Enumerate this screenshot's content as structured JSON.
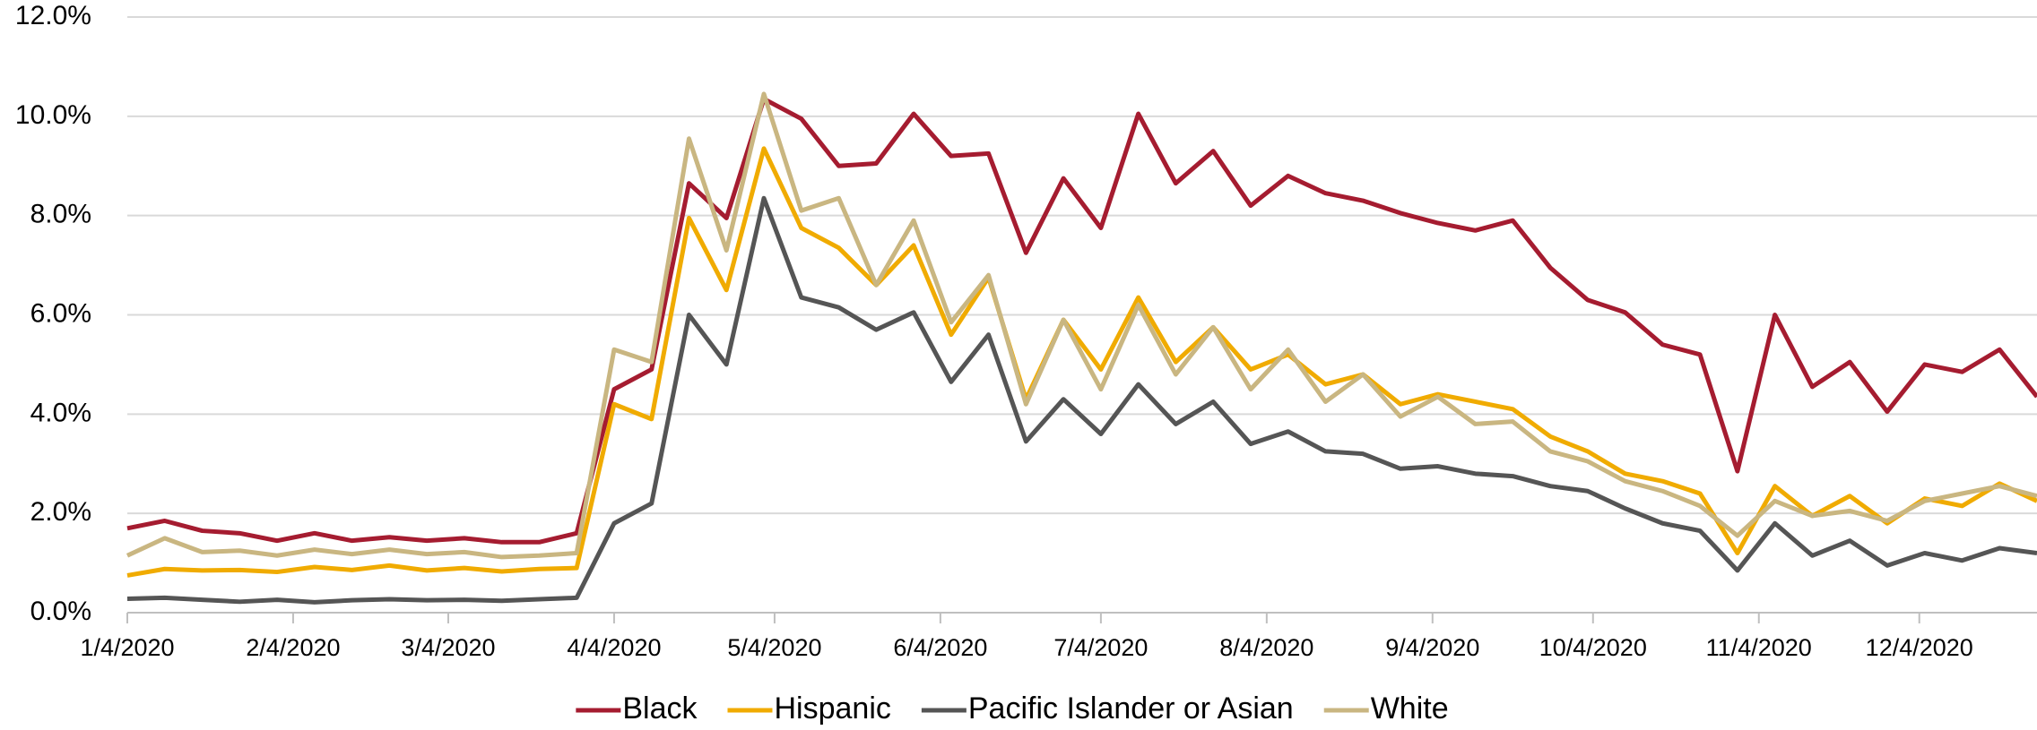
{
  "chart_data": {
    "type": "line",
    "x": [
      "1/4/2020",
      "1/11/2020",
      "1/18/2020",
      "1/25/2020",
      "2/1/2020",
      "2/8/2020",
      "2/15/2020",
      "2/22/2020",
      "2/29/2020",
      "3/7/2020",
      "3/14/2020",
      "3/21/2020",
      "3/28/2020",
      "4/4/2020",
      "4/11/2020",
      "4/18/2020",
      "4/25/2020",
      "5/2/2020",
      "5/9/2020",
      "5/16/2020",
      "5/23/2020",
      "5/30/2020",
      "6/6/2020",
      "6/13/2020",
      "6/20/2020",
      "6/27/2020",
      "7/4/2020",
      "7/11/2020",
      "7/18/2020",
      "7/25/2020",
      "8/1/2020",
      "8/8/2020",
      "8/15/2020",
      "8/22/2020",
      "8/29/2020",
      "9/5/2020",
      "9/12/2020",
      "9/19/2020",
      "9/26/2020",
      "10/3/2020",
      "10/10/2020",
      "10/17/2020",
      "10/24/2020",
      "10/31/2020",
      "11/7/2020",
      "11/14/2020",
      "11/21/2020",
      "11/28/2020",
      "12/5/2020",
      "12/12/2020",
      "12/19/2020",
      "12/26/2020"
    ],
    "series": [
      {
        "name": "Black",
        "color": "#a51c30",
        "values": [
          1.7,
          1.85,
          1.65,
          1.6,
          1.45,
          1.6,
          1.45,
          1.52,
          1.45,
          1.5,
          1.42,
          1.42,
          1.6,
          4.5,
          4.9,
          8.65,
          7.95,
          10.35,
          9.95,
          9.0,
          9.05,
          10.05,
          9.2,
          9.25,
          7.25,
          8.75,
          7.75,
          10.05,
          8.65,
          9.3,
          8.2,
          8.8,
          8.45,
          8.3,
          8.05,
          7.85,
          7.7,
          7.9,
          6.95,
          6.3,
          6.05,
          5.4,
          5.2,
          2.85,
          6.0,
          4.55,
          5.05,
          4.05,
          5.0,
          4.85,
          5.3,
          4.35
        ]
      },
      {
        "name": "Hispanic",
        "color": "#f0ab00",
        "values": [
          0.75,
          0.88,
          0.85,
          0.86,
          0.82,
          0.92,
          0.86,
          0.95,
          0.85,
          0.9,
          0.83,
          0.88,
          0.9,
          4.2,
          3.9,
          7.95,
          6.5,
          9.35,
          7.75,
          7.35,
          6.6,
          7.4,
          5.6,
          6.75,
          4.3,
          5.9,
          4.9,
          6.35,
          5.05,
          5.75,
          4.9,
          5.2,
          4.6,
          4.8,
          4.2,
          4.4,
          4.25,
          4.1,
          3.55,
          3.25,
          2.8,
          2.65,
          2.4,
          1.2,
          2.55,
          1.95,
          2.35,
          1.8,
          2.3,
          2.15,
          2.6,
          2.25
        ]
      },
      {
        "name": "Pacific Islander or Asian",
        "color": "#555555",
        "values": [
          0.28,
          0.3,
          0.26,
          0.22,
          0.26,
          0.21,
          0.25,
          0.27,
          0.25,
          0.26,
          0.24,
          0.27,
          0.3,
          1.8,
          2.2,
          6.0,
          5.0,
          8.35,
          6.35,
          6.15,
          5.7,
          6.05,
          4.65,
          5.6,
          3.45,
          4.3,
          3.6,
          4.6,
          3.8,
          4.25,
          3.4,
          3.65,
          3.25,
          3.2,
          2.9,
          2.95,
          2.8,
          2.75,
          2.55,
          2.45,
          2.1,
          1.8,
          1.65,
          0.85,
          1.8,
          1.15,
          1.45,
          0.95,
          1.2,
          1.05,
          1.3,
          1.2
        ]
      },
      {
        "name": "White",
        "color": "#c9b681",
        "values": [
          1.15,
          1.5,
          1.22,
          1.25,
          1.15,
          1.27,
          1.18,
          1.27,
          1.18,
          1.22,
          1.12,
          1.15,
          1.2,
          5.3,
          5.05,
          9.55,
          7.3,
          10.45,
          8.1,
          8.35,
          6.6,
          7.9,
          5.85,
          6.8,
          4.2,
          5.9,
          4.5,
          6.2,
          4.8,
          5.75,
          4.5,
          5.3,
          4.25,
          4.8,
          3.95,
          4.35,
          3.8,
          3.85,
          3.25,
          3.05,
          2.65,
          2.45,
          2.15,
          1.55,
          2.25,
          1.95,
          2.05,
          1.85,
          2.25,
          2.4,
          2.55,
          2.35
        ]
      }
    ],
    "xlim": [
      "1/4/2020",
      "12/26/2020"
    ],
    "xticks": [
      "1/4/2020",
      "2/4/2020",
      "3/4/2020",
      "4/4/2020",
      "5/4/2020",
      "6/4/2020",
      "7/4/2020",
      "8/4/2020",
      "9/4/2020",
      "10/4/2020",
      "11/4/2020",
      "12/4/2020"
    ],
    "ylim": [
      0,
      12
    ],
    "yticks": [
      {
        "value": 0,
        "label": "0.0%"
      },
      {
        "value": 2,
        "label": "2.0%"
      },
      {
        "value": 4,
        "label": "4.0%"
      },
      {
        "value": 6,
        "label": "6.0%"
      },
      {
        "value": 8,
        "label": "8.0%"
      },
      {
        "value": 10,
        "label": "10.0%"
      },
      {
        "value": 12,
        "label": "12.0%"
      }
    ],
    "grid": true,
    "legend": "bottom"
  }
}
